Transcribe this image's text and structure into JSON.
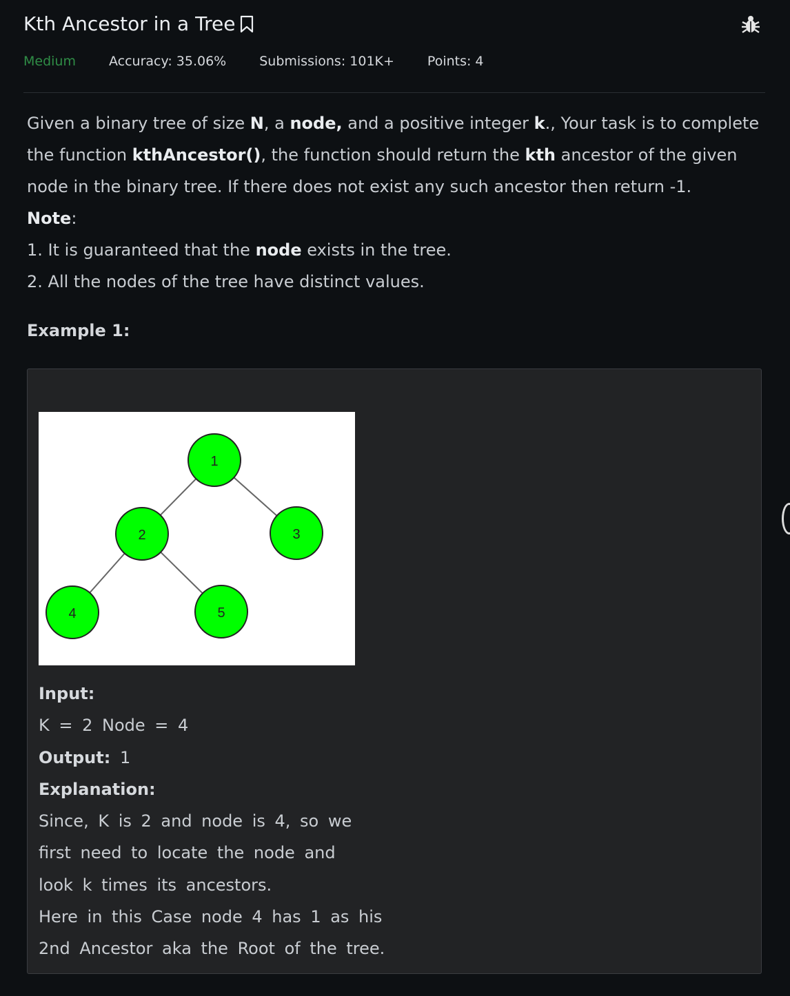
{
  "header": {
    "title": "Kth Ancestor in a Tree",
    "difficulty": "Medium",
    "accuracy": "Accuracy: 35.06%",
    "submissions": "Submissions: 101K+",
    "points": "Points: 4"
  },
  "description": {
    "p1_a": "Given a binary tree of size ",
    "p1_N": "N",
    "p1_b": ", a ",
    "p1_node": "node,",
    "p1_c": " and a positive integer ",
    "p1_k": "k",
    "p1_d": "., Your task is to complete the function ",
    "p1_func": "kthAncestor()",
    "p1_e": ", the function should return the ",
    "p1_kth": "kth",
    "p1_f": " ancestor of the given node in the binary tree. If there does not exist any such ancestor then return -1.",
    "note_label": "Note",
    "note_colon": ":",
    "note1_a": "1. It is guaranteed that the ",
    "note1_node": "node",
    "note1_b": " exists in the tree.",
    "note2": "2. All the nodes of the tree have distinct values."
  },
  "example": {
    "title": "Example 1:",
    "tree_nodes": [
      "1",
      "2",
      "3",
      "4",
      "5"
    ],
    "node_color": "#00ff00",
    "input_label": "Input:",
    "input_value": "K = 2 Node = 4",
    "output_label": "Output:",
    "output_value": "1",
    "explanation_label": "Explanation:",
    "explanation_lines": [
      "Since, K is 2 and node is 4, so we",
      "first need to locate the node and",
      "look k times its ancestors.",
      "Here in this Case node 4 has 1 as his",
      "2nd Ancestor aka the Root of the tree."
    ]
  }
}
